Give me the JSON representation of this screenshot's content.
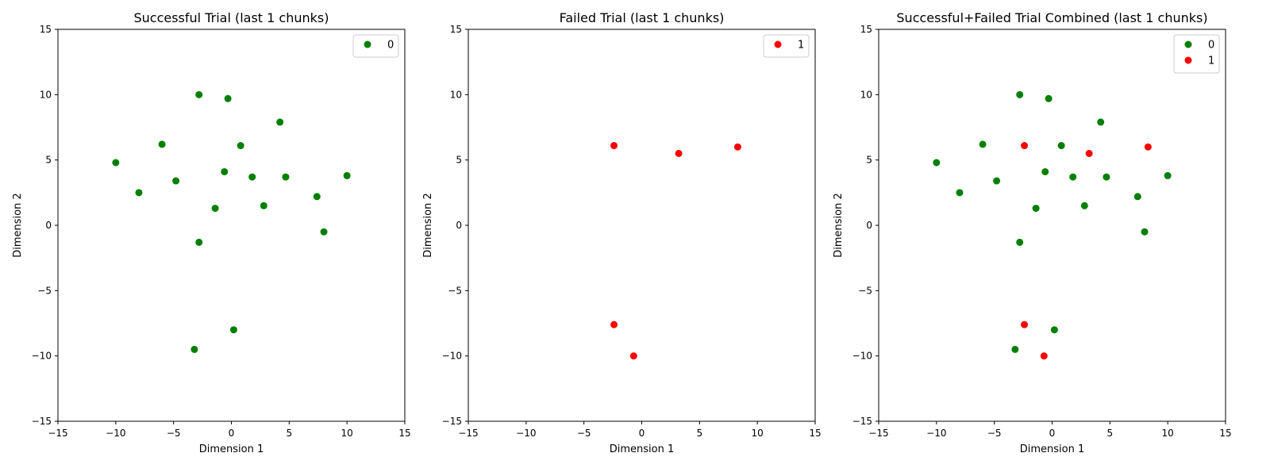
{
  "chart_data": [
    {
      "type": "scatter",
      "title": "Successful Trial (last 1 chunks)",
      "xlabel": "Dimension 1",
      "ylabel": "Dimension 2",
      "xlim": [
        -15,
        15
      ],
      "ylim": [
        -15,
        15
      ],
      "xticks": [
        -15,
        -10,
        -5,
        0,
        5,
        10,
        15
      ],
      "yticks": [
        -15,
        -10,
        -5,
        0,
        5,
        10,
        15
      ],
      "xtick_labels": [
        "−15",
        "−10",
        "−5",
        "0",
        "5",
        "10",
        "15"
      ],
      "ytick_labels": [
        "−15",
        "−10",
        "−5",
        "0",
        "5",
        "10",
        "15"
      ],
      "grid": false,
      "legend_position": "top-right",
      "series": [
        {
          "name": "0",
          "color": "#008000",
          "points": [
            [
              -10.0,
              4.8
            ],
            [
              -8.0,
              2.5
            ],
            [
              -6.0,
              6.2
            ],
            [
              -4.8,
              3.4
            ],
            [
              -2.8,
              10.0
            ],
            [
              -2.8,
              -1.3
            ],
            [
              -3.2,
              -9.5
            ],
            [
              -1.4,
              1.3
            ],
            [
              -0.6,
              4.1
            ],
            [
              -0.3,
              9.7
            ],
            [
              0.2,
              -8.0
            ],
            [
              0.8,
              6.1
            ],
            [
              1.8,
              3.7
            ],
            [
              2.8,
              1.5
            ],
            [
              4.2,
              7.9
            ],
            [
              4.7,
              3.7
            ],
            [
              7.4,
              2.2
            ],
            [
              8.0,
              -0.5
            ],
            [
              10.0,
              3.8
            ]
          ]
        }
      ]
    },
    {
      "type": "scatter",
      "title": "Failed Trial (last 1 chunks)",
      "xlabel": "Dimension 1",
      "ylabel": "Dimension 2",
      "xlim": [
        -15,
        15
      ],
      "ylim": [
        -15,
        15
      ],
      "xticks": [
        -15,
        -10,
        -5,
        0,
        5,
        10,
        15
      ],
      "yticks": [
        -15,
        -10,
        -5,
        0,
        5,
        10,
        15
      ],
      "xtick_labels": [
        "−15",
        "−10",
        "−5",
        "0",
        "5",
        "10",
        "15"
      ],
      "ytick_labels": [
        "−15",
        "−10",
        "−5",
        "0",
        "5",
        "10",
        "15"
      ],
      "grid": false,
      "legend_position": "top-right",
      "series": [
        {
          "name": "1",
          "color": "#ff0000",
          "points": [
            [
              -2.4,
              6.1
            ],
            [
              3.2,
              5.5
            ],
            [
              8.3,
              6.0
            ],
            [
              -2.4,
              -7.6
            ],
            [
              -0.7,
              -10.0
            ]
          ]
        }
      ]
    },
    {
      "type": "scatter",
      "title": "Successful+Failed Trial Combined (last 1 chunks)",
      "xlabel": "Dimension 1",
      "ylabel": "Dimension 2",
      "xlim": [
        -15,
        15
      ],
      "ylim": [
        -15,
        15
      ],
      "xticks": [
        -15,
        -10,
        -5,
        0,
        5,
        10,
        15
      ],
      "yticks": [
        -15,
        -10,
        -5,
        0,
        5,
        10,
        15
      ],
      "xtick_labels": [
        "−15",
        "−10",
        "−5",
        "0",
        "5",
        "10",
        "15"
      ],
      "ytick_labels": [
        "−15",
        "−10",
        "−5",
        "0",
        "5",
        "10",
        "15"
      ],
      "grid": false,
      "legend_position": "top-right",
      "series": [
        {
          "name": "0",
          "color": "#008000",
          "points": [
            [
              -10.0,
              4.8
            ],
            [
              -8.0,
              2.5
            ],
            [
              -6.0,
              6.2
            ],
            [
              -4.8,
              3.4
            ],
            [
              -2.8,
              10.0
            ],
            [
              -2.8,
              -1.3
            ],
            [
              -3.2,
              -9.5
            ],
            [
              -1.4,
              1.3
            ],
            [
              -0.6,
              4.1
            ],
            [
              -0.3,
              9.7
            ],
            [
              0.2,
              -8.0
            ],
            [
              0.8,
              6.1
            ],
            [
              1.8,
              3.7
            ],
            [
              2.8,
              1.5
            ],
            [
              4.2,
              7.9
            ],
            [
              4.7,
              3.7
            ],
            [
              7.4,
              2.2
            ],
            [
              8.0,
              -0.5
            ],
            [
              10.0,
              3.8
            ]
          ]
        },
        {
          "name": "1",
          "color": "#ff0000",
          "points": [
            [
              -2.4,
              6.1
            ],
            [
              3.2,
              5.5
            ],
            [
              8.3,
              6.0
            ],
            [
              -2.4,
              -7.6
            ],
            [
              -0.7,
              -10.0
            ]
          ]
        }
      ]
    }
  ]
}
